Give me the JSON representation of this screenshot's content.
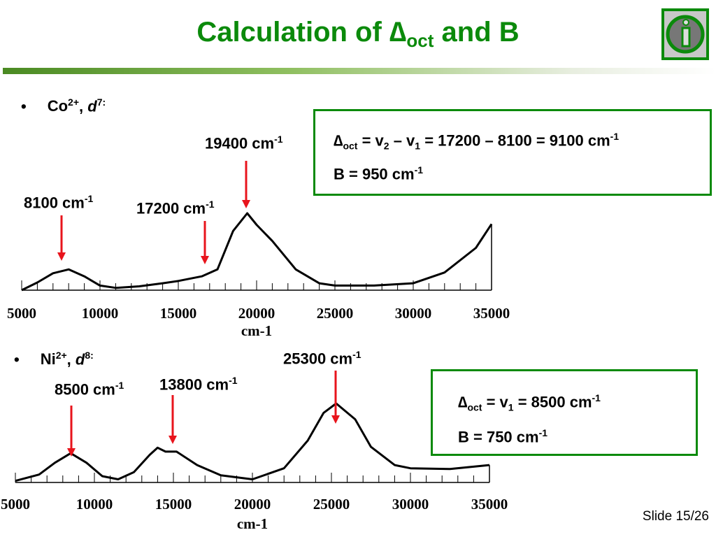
{
  "title": {
    "prefix": "Calculation of ",
    "delta": "∆",
    "sub": "oct",
    "suffix": " and B"
  },
  "info_icon": "info-icon",
  "co": {
    "bullet": "•",
    "ion": "Co",
    "charge": "2+",
    "sep": ", ",
    "d": "d",
    "dn": "7",
    "colon": ":",
    "labels": {
      "p1": "8100 cm",
      "p2": "17200 cm",
      "p3": "19400 cm",
      "exp": "-1"
    },
    "box": {
      "line1_delta": "∆",
      "line1_sub": "oct",
      "line1_a": " = v",
      "line1_s2": "2",
      "line1_b": " – v",
      "line1_s1": "1",
      "line1_c": " = 17200 – 8100 = 9100 cm",
      "line1_exp": "-1",
      "line2": "B = 950 cm",
      "line2_exp": "-1"
    }
  },
  "ni": {
    "bullet": "•",
    "ion": "Ni",
    "charge": "2+",
    "sep": ", ",
    "d": "d",
    "dn": "8",
    "colon": ":",
    "labels": {
      "p1": "8500 cm",
      "p2": "13800 cm",
      "p3": "25300 cm",
      "exp": "-1"
    },
    "box": {
      "line1_delta": "∆",
      "line1_sub": "oct",
      "line1_a": " = v",
      "line1_s1": "1",
      "line1_c": " = 8500 cm",
      "line1_exp": "-1",
      "line2": "B = 750 cm",
      "line2_exp": "-1"
    }
  },
  "slide_number": "Slide 15/26",
  "colors": {
    "accent": "#0b8a0b",
    "arrow": "#e8141c"
  },
  "chart_data": [
    {
      "type": "line",
      "xlabel": "cm-1",
      "xlim": [
        5000,
        35000
      ],
      "xticks": [
        "5000",
        "10000",
        "15000",
        "20000",
        "25000",
        "30000",
        "35000"
      ],
      "annotations": [
        8100,
        17200,
        19400
      ],
      "x": [
        5000,
        6000,
        7000,
        8000,
        9000,
        10000,
        11000,
        12500,
        14000,
        15000,
        16500,
        17500,
        18500,
        19400,
        20000,
        21000,
        22500,
        24000,
        25000,
        27500,
        30000,
        32000,
        34000,
        35000
      ],
      "y": [
        0.0,
        0.1,
        0.22,
        0.27,
        0.18,
        0.06,
        0.03,
        0.05,
        0.09,
        0.12,
        0.18,
        0.27,
        0.77,
        1.0,
        0.85,
        0.64,
        0.27,
        0.09,
        0.06,
        0.06,
        0.09,
        0.23,
        0.55,
        0.86
      ]
    },
    {
      "type": "line",
      "xlabel": "cm-1",
      "xlim": [
        5000,
        35000
      ],
      "xticks": [
        "5000",
        "10000",
        "15000",
        "20000",
        "25000",
        "30000",
        "35000"
      ],
      "annotations": [
        8500,
        13800,
        25300
      ],
      "x": [
        5000,
        6500,
        7500,
        8500,
        9500,
        10500,
        11500,
        12500,
        13500,
        14000,
        14500,
        15200,
        16500,
        18000,
        20000,
        22000,
        23500,
        24500,
        25300,
        26500,
        27500,
        29000,
        30000,
        32500,
        35000
      ],
      "y": [
        0.02,
        0.1,
        0.25,
        0.37,
        0.25,
        0.08,
        0.04,
        0.13,
        0.35,
        0.44,
        0.39,
        0.39,
        0.22,
        0.09,
        0.04,
        0.18,
        0.53,
        0.88,
        1.0,
        0.8,
        0.45,
        0.22,
        0.18,
        0.17,
        0.22
      ]
    }
  ]
}
